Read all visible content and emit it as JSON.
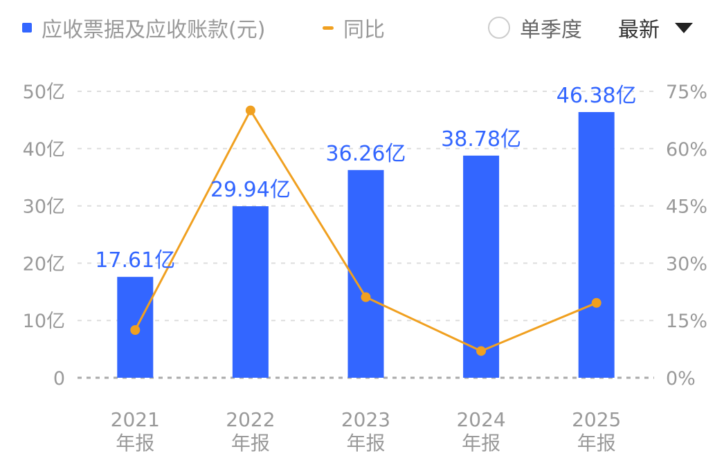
{
  "legend": {
    "bar_label": "应收票据及应收账款(元)",
    "line_label": "同比"
  },
  "controls": {
    "single_quarter_label": "单季度",
    "period_selected": "最新"
  },
  "colors": {
    "bar": "#3366ff",
    "line": "#f0a020",
    "axis_text": "#999999",
    "grid": "#dddddd"
  },
  "chart_data": {
    "type": "bar",
    "categories": [
      [
        "2021",
        "年报"
      ],
      [
        "2022",
        "年报"
      ],
      [
        "2023",
        "年报"
      ],
      [
        "2024",
        "年报"
      ],
      [
        "2025",
        "年报"
      ]
    ],
    "series": [
      {
        "name": "应收票据及应收账款(元)",
        "type": "bar",
        "axis": "left",
        "values": [
          17.61,
          29.94,
          36.26,
          38.78,
          46.38
        ],
        "labels": [
          "17.61亿",
          "29.94亿",
          "36.26亿",
          "38.78亿",
          "46.38亿"
        ]
      },
      {
        "name": "同比",
        "type": "line",
        "axis": "right",
        "values": [
          12.5,
          70.0,
          21.1,
          7.0,
          19.6
        ]
      }
    ],
    "y_left": {
      "range": [
        0,
        50
      ],
      "ticks": [
        0,
        10,
        20,
        30,
        40,
        50
      ],
      "tick_labels": [
        "0",
        "10亿",
        "20亿",
        "30亿",
        "40亿",
        "50亿"
      ]
    },
    "y_right": {
      "range": [
        0,
        75
      ],
      "ticks": [
        0,
        15,
        30,
        45,
        60,
        75
      ],
      "tick_labels": [
        "0%",
        "15%",
        "30%",
        "45%",
        "60%",
        "75%"
      ]
    },
    "grid": true
  }
}
